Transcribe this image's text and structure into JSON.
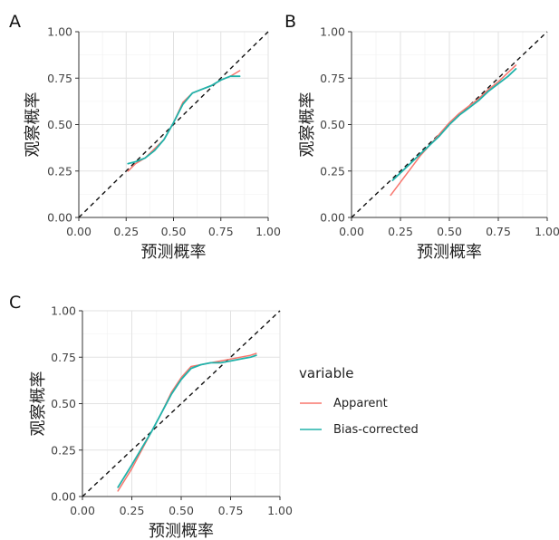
{
  "chart_data": [
    {
      "type": "line",
      "panel_label": "A",
      "xlabel": "预测概率",
      "ylabel": "观察概率",
      "xlim": [
        0,
        1
      ],
      "ylim": [
        0,
        1
      ],
      "xticks": [
        "0.00",
        "0.25",
        "0.50",
        "0.75",
        "1.00"
      ],
      "yticks": [
        "0.00",
        "0.25",
        "0.50",
        "0.75",
        "1.00"
      ],
      "grid": true,
      "series": [
        {
          "name": "Apparent",
          "color": "#f8766d",
          "x": [
            0.26,
            0.3,
            0.35,
            0.4,
            0.45,
            0.5,
            0.55,
            0.6,
            0.65,
            0.7,
            0.75,
            0.8,
            0.85
          ],
          "y": [
            0.25,
            0.29,
            0.32,
            0.37,
            0.42,
            0.51,
            0.62,
            0.67,
            0.69,
            0.71,
            0.74,
            0.76,
            0.79
          ]
        },
        {
          "name": "Bias-corrected",
          "color": "#20b2aa",
          "x": [
            0.26,
            0.3,
            0.35,
            0.4,
            0.45,
            0.5,
            0.55,
            0.6,
            0.65,
            0.7,
            0.75,
            0.8,
            0.85
          ],
          "y": [
            0.29,
            0.3,
            0.32,
            0.36,
            0.42,
            0.51,
            0.61,
            0.67,
            0.69,
            0.71,
            0.74,
            0.76,
            0.76
          ]
        }
      ]
    },
    {
      "type": "line",
      "panel_label": "B",
      "xlabel": "预测概率",
      "ylabel": "观察概率",
      "xlim": [
        0,
        1
      ],
      "ylim": [
        0,
        1
      ],
      "xticks": [
        "0.00",
        "0.25",
        "0.50",
        "0.75",
        "1.00"
      ],
      "yticks": [
        "0.00",
        "0.25",
        "0.50",
        "0.75",
        "1.00"
      ],
      "grid": true,
      "series": [
        {
          "name": "Apparent",
          "color": "#f8766d",
          "x": [
            0.2,
            0.25,
            0.3,
            0.35,
            0.4,
            0.45,
            0.5,
            0.55,
            0.6,
            0.65,
            0.7,
            0.75,
            0.8,
            0.84
          ],
          "y": [
            0.12,
            0.19,
            0.26,
            0.33,
            0.39,
            0.45,
            0.51,
            0.56,
            0.6,
            0.64,
            0.69,
            0.73,
            0.78,
            0.82
          ]
        },
        {
          "name": "Bias-corrected",
          "color": "#20b2aa",
          "x": [
            0.21,
            0.25,
            0.3,
            0.35,
            0.4,
            0.45,
            0.5,
            0.55,
            0.6,
            0.65,
            0.7,
            0.75,
            0.8,
            0.84
          ],
          "y": [
            0.2,
            0.24,
            0.29,
            0.34,
            0.39,
            0.44,
            0.5,
            0.55,
            0.59,
            0.63,
            0.68,
            0.72,
            0.76,
            0.8
          ]
        }
      ]
    },
    {
      "type": "line",
      "panel_label": "C",
      "xlabel": "预测概率",
      "ylabel": "观察概率",
      "xlim": [
        0,
        1
      ],
      "ylim": [
        0,
        1
      ],
      "xticks": [
        "0.00",
        "0.25",
        "0.50",
        "0.75",
        "1.00"
      ],
      "yticks": [
        "0.00",
        "0.25",
        "0.50",
        "0.75",
        "1.00"
      ],
      "grid": true,
      "series": [
        {
          "name": "Apparent",
          "color": "#f8766d",
          "x": [
            0.18,
            0.25,
            0.3,
            0.35,
            0.4,
            0.45,
            0.5,
            0.55,
            0.6,
            0.65,
            0.7,
            0.75,
            0.8,
            0.85,
            0.88
          ],
          "y": [
            0.03,
            0.15,
            0.25,
            0.35,
            0.45,
            0.56,
            0.64,
            0.7,
            0.71,
            0.72,
            0.73,
            0.74,
            0.75,
            0.76,
            0.77
          ]
        },
        {
          "name": "Bias-corrected",
          "color": "#20b2aa",
          "x": [
            0.18,
            0.25,
            0.3,
            0.35,
            0.4,
            0.45,
            0.5,
            0.55,
            0.6,
            0.65,
            0.7,
            0.75,
            0.8,
            0.85,
            0.88
          ],
          "y": [
            0.05,
            0.17,
            0.26,
            0.35,
            0.45,
            0.55,
            0.63,
            0.69,
            0.71,
            0.72,
            0.72,
            0.73,
            0.74,
            0.75,
            0.76
          ]
        }
      ]
    }
  ],
  "legend": {
    "title": "variable",
    "items": [
      {
        "label": "Apparent",
        "color": "#f8766d"
      },
      {
        "label": "Bias-corrected",
        "color": "#20b2aa"
      }
    ]
  }
}
